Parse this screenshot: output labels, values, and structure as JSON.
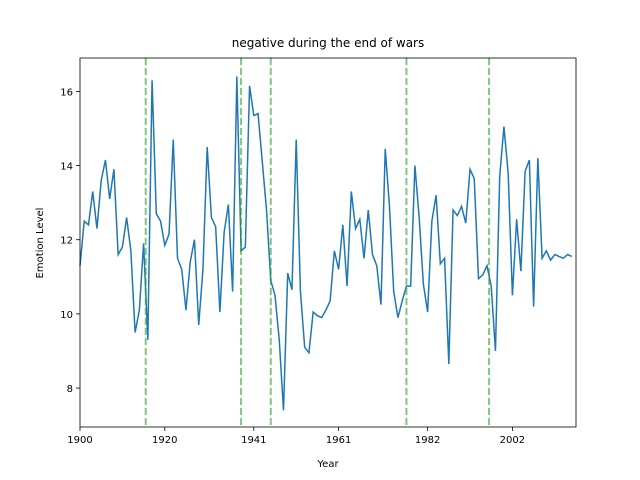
{
  "chart_data": {
    "type": "line",
    "title": "negative during the end of wars",
    "x_label": "Year",
    "y_label": "Emotion Level",
    "x": [
      1900,
      1901,
      1902,
      1903,
      1904,
      1905,
      1906,
      1907,
      1908,
      1909,
      1910,
      1911,
      1912,
      1913,
      1914,
      1915,
      1916,
      1917,
      1918,
      1919,
      1920,
      1921,
      1922,
      1923,
      1924,
      1925,
      1926,
      1927,
      1928,
      1929,
      1930,
      1931,
      1932,
      1933,
      1934,
      1935,
      1936,
      1937,
      1938,
      1939,
      1940,
      1941,
      1942,
      1943,
      1944,
      1945,
      1946,
      1947,
      1948,
      1949,
      1950,
      1951,
      1952,
      1953,
      1954,
      1955,
      1956,
      1957,
      1958,
      1959,
      1960,
      1961,
      1962,
      1963,
      1964,
      1965,
      1966,
      1967,
      1968,
      1969,
      1970,
      1971,
      1972,
      1973,
      1974,
      1975,
      1976,
      1977,
      1978,
      1979,
      1980,
      1981,
      1982,
      1983,
      1984,
      1985,
      1986,
      1987,
      1988,
      1989,
      1990,
      1991,
      1992,
      1993,
      1994,
      1995,
      1996,
      1997,
      1998,
      1999,
      2000,
      2001,
      2002,
      2003,
      2004,
      2005,
      2006,
      2007,
      2008,
      2009,
      2010,
      2011,
      2012,
      2013,
      2014,
      2015,
      2016
    ],
    "series": [
      {
        "color": "#1f77b4",
        "values": [
          11.3,
          12.5,
          12.4,
          13.3,
          12.3,
          13.6,
          14.15,
          13.1,
          13.9,
          11.6,
          11.8,
          12.6,
          11.7,
          9.5,
          10.1,
          11.9,
          9.3,
          16.3,
          12.7,
          12.5,
          11.85,
          12.15,
          14.7,
          11.5,
          11.2,
          10.1,
          11.4,
          12.0,
          9.7,
          11.2,
          14.5,
          12.6,
          12.35,
          10.05,
          12.2,
          12.95,
          10.6,
          16.4,
          11.7,
          11.8,
          16.15,
          15.35,
          15.4,
          14.1,
          12.8,
          10.9,
          10.5,
          9.3,
          7.4,
          11.1,
          10.65,
          14.7,
          10.6,
          9.1,
          8.95,
          10.05,
          9.95,
          9.9,
          10.1,
          10.35,
          11.7,
          11.2,
          12.4,
          10.75,
          13.3,
          12.3,
          12.55,
          11.5,
          12.8,
          11.6,
          11.3,
          10.25,
          14.45,
          12.9,
          10.6,
          9.9,
          10.35,
          10.75,
          10.75,
          14.0,
          12.6,
          10.8,
          10.05,
          12.5,
          13.2,
          11.35,
          11.5,
          8.65,
          12.8,
          12.65,
          12.9,
          12.45,
          13.9,
          13.65,
          10.95,
          11.05,
          11.3,
          10.75,
          9.0,
          13.7,
          15.05,
          13.8,
          10.5,
          12.55,
          11.15,
          13.85,
          14.15,
          10.2,
          14.2,
          11.5,
          11.7,
          11.45,
          11.6,
          11.55,
          11.5,
          11.6,
          11.55
        ]
      }
    ],
    "vlines": {
      "color": "#2ca02c",
      "x": [
        1915.5,
        1938,
        1945,
        1977,
        1996.5
      ]
    },
    "xlim": [
      1900,
      2017
    ],
    "ylim": [
      6.95,
      16.9
    ],
    "xticks": [
      1900,
      1920,
      1941,
      1961,
      1982,
      2002
    ],
    "yticks": [
      8,
      10,
      12,
      14,
      16
    ]
  }
}
